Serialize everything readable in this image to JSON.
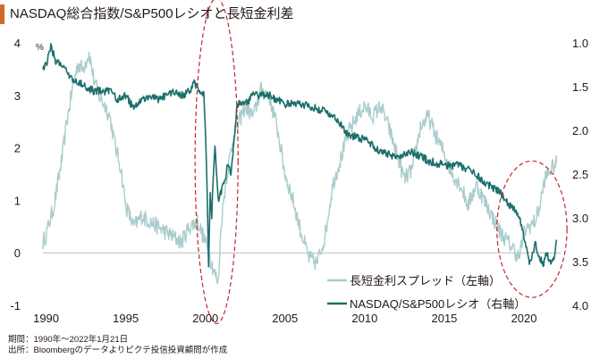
{
  "title": "NASDAQ総合指数/S&P500レシオと長短金利差",
  "footnotes": {
    "period": "期間：1990年～2022年1月21日",
    "source": "出所：Bloombergのデータよりピクテ投信投資顧問が作成"
  },
  "colors": {
    "spread": "#a9cccc",
    "ratio": "#1b6e6b",
    "ellipse": "#c0282f",
    "zero_line": "#bbbbbb",
    "title_accent": "#d3692b"
  },
  "chart_data": {
    "type": "line",
    "title": "NASDAQ総合指数/S&P500レシオと長短金利差",
    "x_ticks": [
      1990,
      1995,
      2000,
      2005,
      2010,
      2015,
      2020
    ],
    "xlim": [
      1989.8,
      2022.3
    ],
    "y_left": {
      "unit": "%",
      "ticks": [
        "4",
        "3",
        "2",
        "1",
        "0",
        "-1"
      ],
      "range": [
        -1,
        4
      ]
    },
    "y_right": {
      "ticks": [
        "1.0",
        "1.5",
        "2.0",
        "2.5",
        "3.0",
        "3.5",
        "4.0"
      ],
      "range": [
        1.0,
        4.0
      ],
      "inverted": true
    },
    "annotations": [
      {
        "shape": "dashed-ellipse",
        "center": [
          2000.7,
          1.75
        ],
        "radii": [
          1.35,
          3.1
        ],
        "axis": "left"
      },
      {
        "shape": "dashed-ellipse",
        "center": [
          2020.5,
          0.45
        ],
        "radii": [
          2.2,
          1.3
        ],
        "axis": "left"
      }
    ],
    "series": [
      {
        "name": "長短金利スプレッド（左軸）",
        "axis": "left",
        "x": [
          1989.8,
          1990.0,
          1990.5,
          1991.0,
          1991.3,
          1991.7,
          1992.0,
          1992.3,
          1992.7,
          1993.0,
          1993.3,
          1993.7,
          1994.0,
          1994.3,
          1994.7,
          1995.0,
          1995.5,
          1996.0,
          1996.5,
          1997.0,
          1997.5,
          1998.0,
          1998.5,
          1999.0,
          1999.5,
          2000.0,
          2000.5,
          2000.8,
          2001.0,
          2001.3,
          2001.7,
          2002.0,
          2002.5,
          2003.0,
          2003.5,
          2004.0,
          2004.5,
          2005.0,
          2005.5,
          2006.0,
          2006.5,
          2007.0,
          2007.5,
          2008.0,
          2008.5,
          2009.0,
          2009.5,
          2010.0,
          2010.5,
          2011.0,
          2011.5,
          2012.0,
          2012.5,
          2013.0,
          2013.5,
          2014.0,
          2014.5,
          2015.0,
          2015.5,
          2016.0,
          2016.5,
          2017.0,
          2017.5,
          2018.0,
          2018.5,
          2019.0,
          2019.3,
          2019.7,
          2020.0,
          2020.3,
          2020.7,
          2021.0,
          2021.3,
          2021.7,
          2022.05
        ],
        "y": [
          0.2,
          0.35,
          0.9,
          1.8,
          2.5,
          3.2,
          3.6,
          3.5,
          3.8,
          3.3,
          3.0,
          2.8,
          2.6,
          2.1,
          1.6,
          0.9,
          0.5,
          0.7,
          0.6,
          0.5,
          0.4,
          0.3,
          0.2,
          0.5,
          0.6,
          0.2,
          -0.3,
          -0.6,
          0.6,
          1.4,
          2.1,
          2.4,
          2.8,
          2.6,
          3.1,
          3.0,
          2.4,
          1.5,
          1.0,
          0.4,
          -0.1,
          -0.2,
          0.3,
          1.3,
          1.8,
          2.3,
          2.6,
          2.8,
          2.6,
          2.8,
          2.4,
          1.9,
          1.4,
          1.6,
          2.4,
          2.6,
          2.2,
          1.9,
          1.5,
          1.3,
          0.9,
          1.3,
          1.0,
          0.7,
          0.4,
          0.2,
          0.1,
          -0.1,
          0.4,
          0.5,
          0.6,
          0.9,
          1.4,
          1.6,
          1.7
        ]
      },
      {
        "name": "NASDAQ/S&P500レシオ（右軸）",
        "axis": "right",
        "x": [
          1989.8,
          1990.0,
          1990.3,
          1990.6,
          1990.9,
          1991.2,
          1991.5,
          1991.8,
          1992.0,
          1992.5,
          1993.0,
          1993.5,
          1994.0,
          1994.5,
          1995.0,
          1995.5,
          1996.0,
          1996.5,
          1997.0,
          1997.5,
          1998.0,
          1998.5,
          1999.0,
          1999.3,
          1999.6,
          1999.9,
          2000.0,
          2000.1,
          2000.2,
          2000.3,
          2000.4,
          2000.5,
          2000.6,
          2000.8,
          2001.0,
          2001.2,
          2001.4,
          2001.6,
          2002.0,
          2002.5,
          2003.0,
          2003.5,
          2004.0,
          2005.0,
          2006.0,
          2007.0,
          2007.8,
          2008.3,
          2009.0,
          2010.0,
          2011.0,
          2012.0,
          2013.0,
          2014.0,
          2015.0,
          2016.0,
          2017.0,
          2017.5,
          2018.0,
          2018.5,
          2019.0,
          2019.5,
          2019.8,
          2020.0,
          2020.2,
          2020.3,
          2020.5,
          2020.7,
          2021.0,
          2021.2,
          2021.4,
          2021.6,
          2021.8,
          2021.95,
          2022.05
        ],
        "y": [
          1.3,
          1.25,
          1.05,
          1.2,
          1.25,
          1.3,
          1.4,
          1.45,
          1.45,
          1.5,
          1.55,
          1.55,
          1.55,
          1.65,
          1.6,
          1.75,
          1.65,
          1.6,
          1.65,
          1.6,
          1.55,
          1.6,
          1.55,
          1.45,
          1.55,
          1.6,
          2.0,
          2.6,
          3.6,
          2.7,
          3.0,
          2.5,
          2.2,
          2.8,
          2.7,
          2.6,
          2.4,
          2.5,
          1.7,
          1.7,
          1.6,
          1.6,
          1.6,
          1.7,
          1.7,
          1.75,
          1.8,
          1.9,
          2.05,
          2.1,
          2.25,
          2.3,
          2.25,
          2.35,
          2.4,
          2.4,
          2.5,
          2.6,
          2.65,
          2.7,
          2.85,
          2.9,
          3.05,
          3.2,
          3.35,
          3.5,
          3.45,
          3.3,
          3.45,
          3.55,
          3.4,
          3.5,
          3.5,
          3.4,
          3.25
        ]
      }
    ]
  }
}
